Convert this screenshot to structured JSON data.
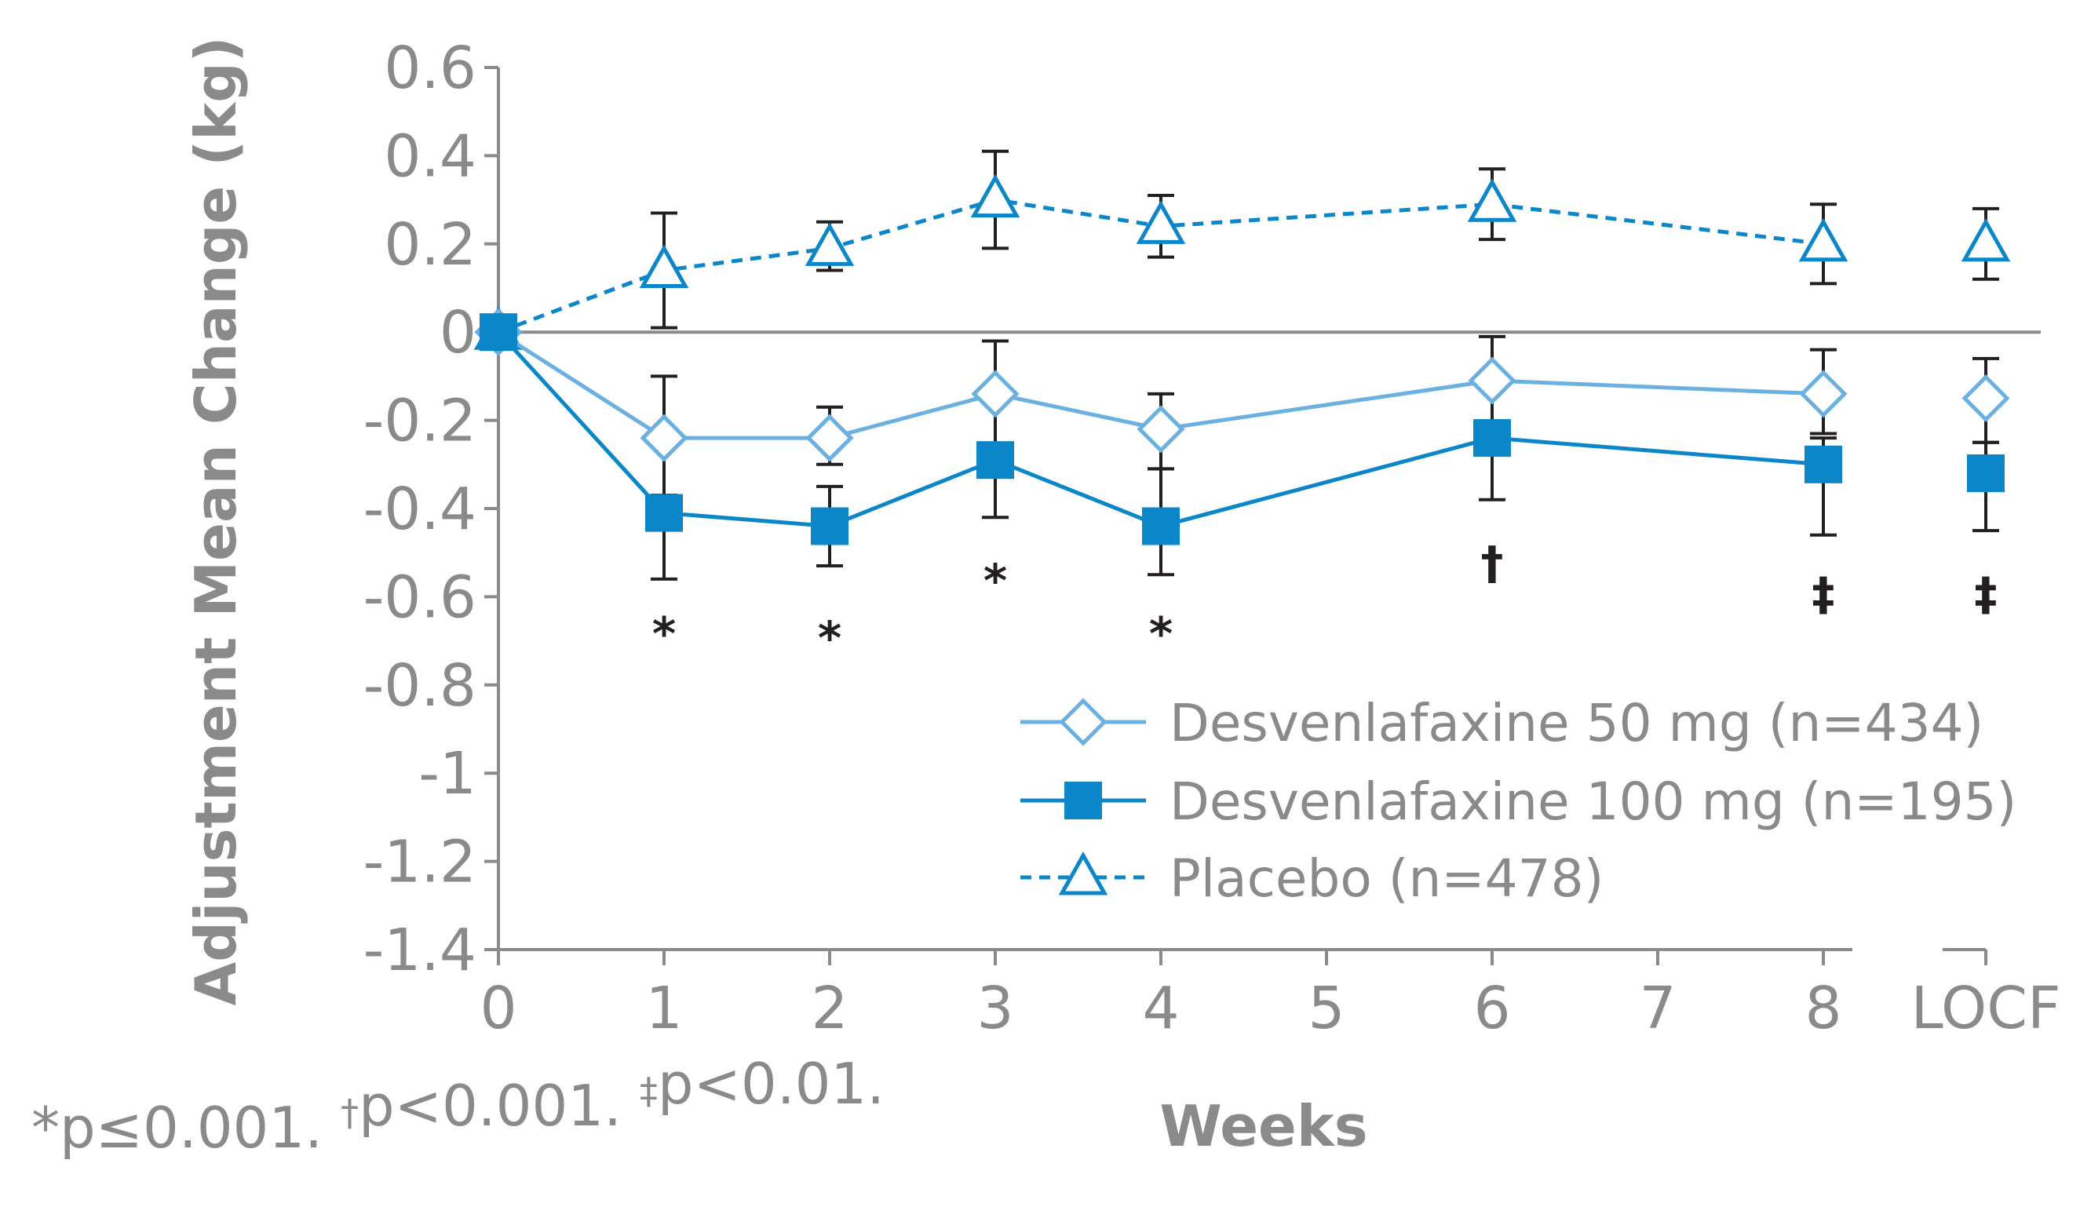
{
  "chart_data": {
    "type": "line",
    "title": "",
    "xlabel": "Weeks",
    "ylabel": "Adjustment Mean Change (kg)",
    "x_ticks": [
      "0",
      "1",
      "2",
      "3",
      "4",
      "5",
      "6",
      "7",
      "8",
      "LOCF"
    ],
    "y_ticks": [
      "0.6",
      "0.4",
      "0.2",
      "0",
      "-0.2",
      "-0.4",
      "-0.6",
      "-0.8",
      "-1",
      "-1.2",
      "-1.4"
    ],
    "ylim": [
      -1.4,
      0.6
    ],
    "grid": false,
    "legend_position": "bottom-right",
    "series": [
      {
        "name": "Desvenlafaxine 50 mg (n=434)",
        "marker": "diamond-open",
        "line_style": "solid",
        "color": "#6ab0e0",
        "points": [
          {
            "x": "0",
            "y": 0,
            "err_low": 0,
            "err_high": 0
          },
          {
            "x": "1",
            "y": -0.24,
            "err_low": -0.38,
            "err_high": -0.1
          },
          {
            "x": "2",
            "y": -0.24,
            "err_low": -0.3,
            "err_high": -0.17
          },
          {
            "x": "3",
            "y": -0.14,
            "err_low": -0.28,
            "err_high": -0.02
          },
          {
            "x": "4",
            "y": -0.22,
            "err_low": -0.31,
            "err_high": -0.14
          },
          {
            "x": "6",
            "y": -0.11,
            "err_low": -0.24,
            "err_high": -0.01
          },
          {
            "x": "8",
            "y": -0.14,
            "err_low": -0.23,
            "err_high": -0.04
          },
          {
            "x": "LOCF",
            "y": -0.15,
            "err_low": -0.25,
            "err_high": -0.06
          }
        ]
      },
      {
        "name": "Desvenlafaxine 100 mg (n=195)",
        "marker": "square-filled",
        "line_style": "solid",
        "color": "#0a86c9",
        "points": [
          {
            "x": "0",
            "y": 0,
            "err_low": 0,
            "err_high": 0
          },
          {
            "x": "1",
            "y": -0.41,
            "err_low": -0.56,
            "err_high": -0.37
          },
          {
            "x": "2",
            "y": -0.44,
            "err_low": -0.53,
            "err_high": -0.35
          },
          {
            "x": "3",
            "y": -0.29,
            "err_low": -0.42,
            "err_high": -0.29
          },
          {
            "x": "4",
            "y": -0.44,
            "err_low": -0.55,
            "err_high": -0.31
          },
          {
            "x": "6",
            "y": -0.24,
            "err_low": -0.38,
            "err_high": -0.24
          },
          {
            "x": "8",
            "y": -0.3,
            "err_low": -0.46,
            "err_high": -0.24
          },
          {
            "x": "LOCF",
            "y": -0.32,
            "err_low": -0.45,
            "err_high": -0.25
          }
        ]
      },
      {
        "name": "Placebo (n=478)",
        "marker": "triangle-open",
        "line_style": "dashed",
        "color": "#0a86c9",
        "points": [
          {
            "x": "0",
            "y": 0,
            "err_low": 0,
            "err_high": 0
          },
          {
            "x": "1",
            "y": 0.14,
            "err_low": 0.01,
            "err_high": 0.27
          },
          {
            "x": "2",
            "y": 0.19,
            "err_low": 0.14,
            "err_high": 0.25
          },
          {
            "x": "3",
            "y": 0.3,
            "err_low": 0.19,
            "err_high": 0.41
          },
          {
            "x": "4",
            "y": 0.24,
            "err_low": 0.17,
            "err_high": 0.31
          },
          {
            "x": "6",
            "y": 0.29,
            "err_low": 0.21,
            "err_high": 0.37
          },
          {
            "x": "8",
            "y": 0.2,
            "err_low": 0.11,
            "err_high": 0.29
          },
          {
            "x": "LOCF",
            "y": 0.2,
            "err_low": 0.12,
            "err_high": 0.28
          }
        ]
      }
    ],
    "annotations": [
      {
        "x": "1",
        "y": -0.68,
        "text": "*"
      },
      {
        "x": "2",
        "y": -0.69,
        "text": "*"
      },
      {
        "x": "3",
        "y": -0.56,
        "text": "*"
      },
      {
        "x": "4",
        "y": -0.68,
        "text": "*"
      },
      {
        "x": "6",
        "y": -0.52,
        "text": "†"
      },
      {
        "x": "8",
        "y": -0.59,
        "text": "‡"
      },
      {
        "x": "LOCF",
        "y": -0.59,
        "text": "‡"
      }
    ],
    "footnote": {
      "parts": [
        {
          "text": "*",
          "sup": false
        },
        {
          "text": "p≤0.001. ",
          "sup": false
        },
        {
          "text": "†",
          "sup": true
        },
        {
          "text": "p<0.001. ",
          "sup": false
        },
        {
          "text": "‡",
          "sup": true
        },
        {
          "text": "p<0.01.",
          "sup": false
        }
      ]
    }
  }
}
